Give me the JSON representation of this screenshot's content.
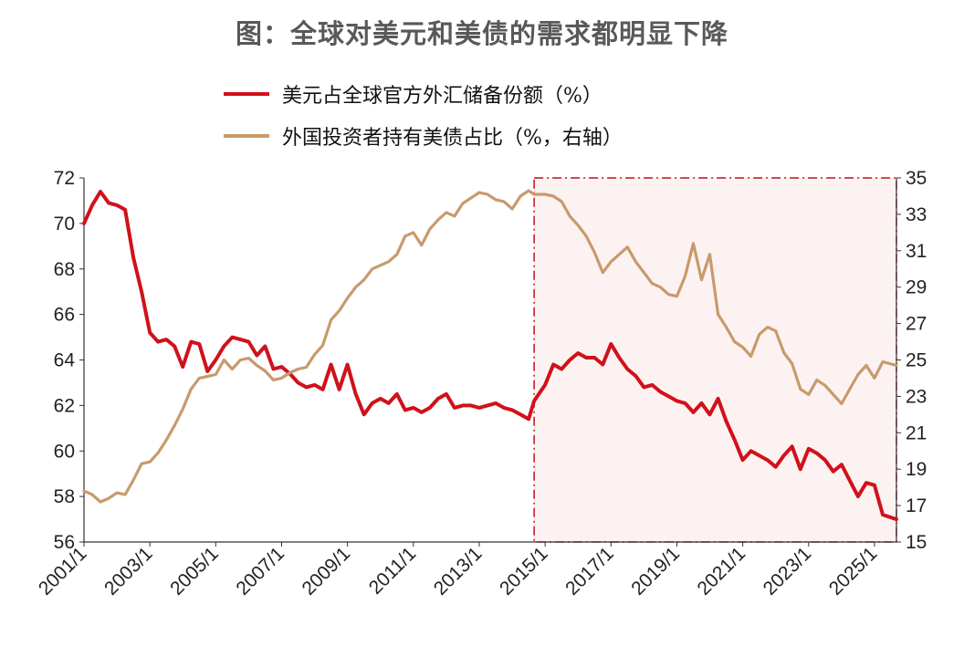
{
  "title": "图：全球对美元和美债的需求都明显下降",
  "colors": {
    "series1": "#d0111b",
    "series2": "#c89a6c",
    "highlight_fill": "#fdf2f2",
    "highlight_border": "#c0101a"
  },
  "legend": [
    {
      "label": "美元占全球官方外汇储备份额（%）",
      "color": "#d0111b"
    },
    {
      "label": "外国投资者持有美债占比（%，右轴）",
      "color": "#c89a6c"
    }
  ],
  "chart_data": {
    "type": "line",
    "title": "图：全球对美元和美债的需求都明显下降",
    "x_tick_labels": [
      "2001/1",
      "2003/1",
      "2005/1",
      "2007/1",
      "2009/1",
      "2011/1",
      "2013/1",
      "2015/1",
      "2017/1",
      "2019/1",
      "2021/1",
      "2023/1",
      "2025/1"
    ],
    "x_range": [
      "2001/1",
      "2025/9"
    ],
    "y_left": {
      "range": [
        56,
        72
      ],
      "ticks": [
        56,
        58,
        60,
        62,
        64,
        66,
        68,
        70,
        72
      ]
    },
    "y_right": {
      "range": [
        15,
        35
      ],
      "ticks": [
        15,
        17,
        19,
        21,
        23,
        25,
        27,
        29,
        31,
        33,
        35
      ]
    },
    "highlight_period": {
      "from": "2014/9",
      "to": "2025/9"
    },
    "series": [
      {
        "name": "美元占全球官方外汇储备份额（%）",
        "axis": "left",
        "points": [
          [
            "2001/1",
            70.0
          ],
          [
            "2001/4",
            70.8
          ],
          [
            "2001/7",
            71.4
          ],
          [
            "2001/10",
            70.9
          ],
          [
            "2002/1",
            70.8
          ],
          [
            "2002/4",
            70.6
          ],
          [
            "2002/7",
            68.5
          ],
          [
            "2002/10",
            67.0
          ],
          [
            "2003/1",
            65.2
          ],
          [
            "2003/4",
            64.8
          ],
          [
            "2003/7",
            64.9
          ],
          [
            "2003/10",
            64.6
          ],
          [
            "2004/1",
            63.7
          ],
          [
            "2004/4",
            64.8
          ],
          [
            "2004/7",
            64.7
          ],
          [
            "2004/10",
            63.5
          ],
          [
            "2005/1",
            64.0
          ],
          [
            "2005/4",
            64.6
          ],
          [
            "2005/7",
            65.0
          ],
          [
            "2005/10",
            64.9
          ],
          [
            "2006/1",
            64.8
          ],
          [
            "2006/4",
            64.2
          ],
          [
            "2006/7",
            64.6
          ],
          [
            "2006/10",
            63.6
          ],
          [
            "2007/1",
            63.7
          ],
          [
            "2007/4",
            63.4
          ],
          [
            "2007/7",
            63.0
          ],
          [
            "2007/10",
            62.8
          ],
          [
            "2008/1",
            62.9
          ],
          [
            "2008/4",
            62.7
          ],
          [
            "2008/7",
            63.8
          ],
          [
            "2008/10",
            62.7
          ],
          [
            "2009/1",
            63.8
          ],
          [
            "2009/4",
            62.5
          ],
          [
            "2009/7",
            61.6
          ],
          [
            "2009/10",
            62.1
          ],
          [
            "2010/1",
            62.3
          ],
          [
            "2010/4",
            62.1
          ],
          [
            "2010/7",
            62.5
          ],
          [
            "2010/10",
            61.8
          ],
          [
            "2011/1",
            61.9
          ],
          [
            "2011/4",
            61.7
          ],
          [
            "2011/7",
            61.9
          ],
          [
            "2011/10",
            62.3
          ],
          [
            "2012/1",
            62.5
          ],
          [
            "2012/4",
            61.9
          ],
          [
            "2012/7",
            62.0
          ],
          [
            "2012/10",
            62.0
          ],
          [
            "2013/1",
            61.9
          ],
          [
            "2013/4",
            62.0
          ],
          [
            "2013/7",
            62.1
          ],
          [
            "2013/10",
            61.9
          ],
          [
            "2014/1",
            61.8
          ],
          [
            "2014/4",
            61.6
          ],
          [
            "2014/7",
            61.4
          ],
          [
            "2014/9",
            62.2
          ],
          [
            "2015/1",
            62.9
          ],
          [
            "2015/4",
            63.8
          ],
          [
            "2015/7",
            63.6
          ],
          [
            "2015/10",
            64.0
          ],
          [
            "2016/1",
            64.3
          ],
          [
            "2016/4",
            64.1
          ],
          [
            "2016/7",
            64.1
          ],
          [
            "2016/10",
            63.8
          ],
          [
            "2017/1",
            64.7
          ],
          [
            "2017/4",
            64.1
          ],
          [
            "2017/7",
            63.6
          ],
          [
            "2017/10",
            63.3
          ],
          [
            "2018/1",
            62.8
          ],
          [
            "2018/4",
            62.9
          ],
          [
            "2018/7",
            62.6
          ],
          [
            "2018/10",
            62.4
          ],
          [
            "2019/1",
            62.2
          ],
          [
            "2019/4",
            62.1
          ],
          [
            "2019/7",
            61.7
          ],
          [
            "2019/10",
            62.1
          ],
          [
            "2020/1",
            61.6
          ],
          [
            "2020/4",
            62.3
          ],
          [
            "2020/7",
            61.3
          ],
          [
            "2020/10",
            60.5
          ],
          [
            "2021/1",
            59.6
          ],
          [
            "2021/4",
            60.0
          ],
          [
            "2021/7",
            59.8
          ],
          [
            "2021/10",
            59.6
          ],
          [
            "2022/1",
            59.3
          ],
          [
            "2022/4",
            59.8
          ],
          [
            "2022/7",
            60.2
          ],
          [
            "2022/10",
            59.2
          ],
          [
            "2023/1",
            60.1
          ],
          [
            "2023/4",
            59.9
          ],
          [
            "2023/7",
            59.6
          ],
          [
            "2023/10",
            59.1
          ],
          [
            "2024/1",
            59.4
          ],
          [
            "2024/4",
            58.7
          ],
          [
            "2024/7",
            58.0
          ],
          [
            "2024/10",
            58.6
          ],
          [
            "2025/1",
            58.5
          ],
          [
            "2025/4",
            57.2
          ],
          [
            "2025/9",
            57.0
          ]
        ]
      },
      {
        "name": "外国投资者持有美债占比（%，右轴）",
        "axis": "right",
        "points": [
          [
            "2001/1",
            17.8
          ],
          [
            "2001/4",
            17.6
          ],
          [
            "2001/7",
            17.2
          ],
          [
            "2001/10",
            17.4
          ],
          [
            "2002/1",
            17.7
          ],
          [
            "2002/4",
            17.6
          ],
          [
            "2002/7",
            18.4
          ],
          [
            "2002/10",
            19.3
          ],
          [
            "2003/1",
            19.4
          ],
          [
            "2003/4",
            19.9
          ],
          [
            "2003/7",
            20.6
          ],
          [
            "2003/10",
            21.4
          ],
          [
            "2004/1",
            22.3
          ],
          [
            "2004/4",
            23.4
          ],
          [
            "2004/7",
            24.0
          ],
          [
            "2004/10",
            24.1
          ],
          [
            "2005/1",
            24.2
          ],
          [
            "2005/4",
            25.0
          ],
          [
            "2005/7",
            24.5
          ],
          [
            "2005/10",
            25.0
          ],
          [
            "2006/1",
            25.1
          ],
          [
            "2006/4",
            24.7
          ],
          [
            "2006/7",
            24.4
          ],
          [
            "2006/10",
            23.9
          ],
          [
            "2007/1",
            24.0
          ],
          [
            "2007/4",
            24.3
          ],
          [
            "2007/7",
            24.5
          ],
          [
            "2007/10",
            24.6
          ],
          [
            "2008/1",
            25.3
          ],
          [
            "2008/4",
            25.8
          ],
          [
            "2008/7",
            27.2
          ],
          [
            "2008/10",
            27.7
          ],
          [
            "2009/1",
            28.4
          ],
          [
            "2009/4",
            29.0
          ],
          [
            "2009/7",
            29.4
          ],
          [
            "2009/10",
            30.0
          ],
          [
            "2010/1",
            30.2
          ],
          [
            "2010/4",
            30.4
          ],
          [
            "2010/7",
            30.8
          ],
          [
            "2010/10",
            31.8
          ],
          [
            "2011/1",
            32.0
          ],
          [
            "2011/4",
            31.3
          ],
          [
            "2011/7",
            32.2
          ],
          [
            "2011/10",
            32.7
          ],
          [
            "2012/1",
            33.1
          ],
          [
            "2012/4",
            32.9
          ],
          [
            "2012/7",
            33.6
          ],
          [
            "2012/10",
            33.9
          ],
          [
            "2013/1",
            34.2
          ],
          [
            "2013/4",
            34.1
          ],
          [
            "2013/7",
            33.8
          ],
          [
            "2013/10",
            33.7
          ],
          [
            "2014/1",
            33.3
          ],
          [
            "2014/4",
            34.0
          ],
          [
            "2014/7",
            34.3
          ],
          [
            "2014/9",
            34.1
          ],
          [
            "2015/1",
            34.1
          ],
          [
            "2015/4",
            34.0
          ],
          [
            "2015/7",
            33.7
          ],
          [
            "2015/10",
            32.9
          ],
          [
            "2016/1",
            32.4
          ],
          [
            "2016/4",
            31.8
          ],
          [
            "2016/7",
            30.9
          ],
          [
            "2016/10",
            29.8
          ],
          [
            "2017/1",
            30.4
          ],
          [
            "2017/4",
            30.8
          ],
          [
            "2017/7",
            31.2
          ],
          [
            "2017/10",
            30.4
          ],
          [
            "2018/1",
            29.8
          ],
          [
            "2018/4",
            29.2
          ],
          [
            "2018/7",
            29.0
          ],
          [
            "2018/10",
            28.6
          ],
          [
            "2019/1",
            28.5
          ],
          [
            "2019/4",
            29.6
          ],
          [
            "2019/7",
            31.4
          ],
          [
            "2019/10",
            29.4
          ],
          [
            "2020/1",
            30.8
          ],
          [
            "2020/4",
            27.5
          ],
          [
            "2020/7",
            26.8
          ],
          [
            "2020/10",
            26.0
          ],
          [
            "2021/1",
            25.7
          ],
          [
            "2021/4",
            25.2
          ],
          [
            "2021/7",
            26.4
          ],
          [
            "2021/10",
            26.8
          ],
          [
            "2022/1",
            26.6
          ],
          [
            "2022/4",
            25.4
          ],
          [
            "2022/7",
            24.8
          ],
          [
            "2022/10",
            23.4
          ],
          [
            "2023/1",
            23.1
          ],
          [
            "2023/4",
            23.9
          ],
          [
            "2023/7",
            23.6
          ],
          [
            "2023/10",
            23.1
          ],
          [
            "2024/1",
            22.6
          ],
          [
            "2024/4",
            23.4
          ],
          [
            "2024/7",
            24.2
          ],
          [
            "2024/10",
            24.7
          ],
          [
            "2025/1",
            24.0
          ],
          [
            "2025/4",
            24.9
          ],
          [
            "2025/9",
            24.7
          ]
        ]
      }
    ]
  }
}
